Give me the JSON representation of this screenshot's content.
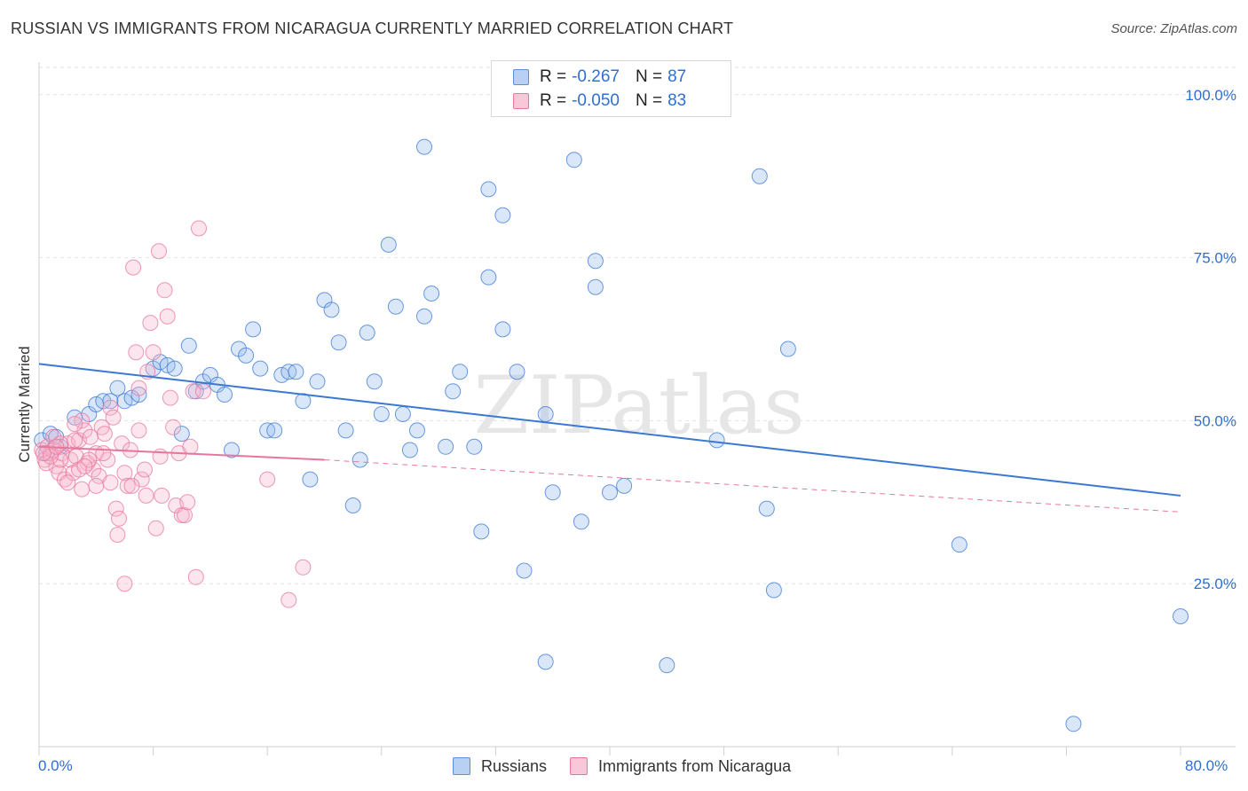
{
  "title": "RUSSIAN VS IMMIGRANTS FROM NICARAGUA CURRENTLY MARRIED CORRELATION CHART",
  "source": "Source: ZipAtlas.com",
  "watermark": "ZIPatlas",
  "legend": {
    "rows": [
      {
        "r_label": "R =",
        "r_value": "-0.267",
        "n_label": "N =",
        "n_value": "87",
        "color": "#5b8fd9",
        "fill": "#b8d0f2"
      },
      {
        "r_label": "R =",
        "r_value": "-0.050",
        "n_label": "N =",
        "n_value": "83",
        "color": "#e8769c",
        "fill": "#f8c8d8"
      }
    ]
  },
  "bottom_legend": [
    {
      "label": "Russians",
      "color": "#5b8fd9",
      "fill": "#b8d0f2"
    },
    {
      "label": "Immigrants from Nicaragua",
      "color": "#e8769c",
      "fill": "#f8c8d8"
    }
  ],
  "chart_data": {
    "type": "scatter",
    "title": "RUSSIAN VS IMMIGRANTS FROM NICARAGUA CURRENTLY MARRIED CORRELATION CHART",
    "xlabel": "",
    "ylabel": "Currently Married",
    "xlim": [
      0,
      80
    ],
    "ylim": [
      0,
      105
    ],
    "x_tick_labels": [
      "0.0%",
      "80.0%"
    ],
    "y_ticks": [
      25,
      50,
      75,
      100
    ],
    "y_tick_labels": [
      "25.0%",
      "50.0%",
      "75.0%",
      "100.0%"
    ],
    "grid": true,
    "series": [
      {
        "name": "Russians",
        "color": "#3a78d4",
        "fill": "rgba(150,186,236,0.35)",
        "trend": {
          "x": [
            0,
            80
          ],
          "y": [
            58.7,
            38.5
          ],
          "dashed_x": null
        },
        "points": [
          [
            0.2,
            47.0
          ],
          [
            0.5,
            45.0
          ],
          [
            0.8,
            48.0
          ],
          [
            1.2,
            47.5
          ],
          [
            1.5,
            46.0
          ],
          [
            2.5,
            50.5
          ],
          [
            3.5,
            51.0
          ],
          [
            4.0,
            52.5
          ],
          [
            4.5,
            53.0
          ],
          [
            5.0,
            53.0
          ],
          [
            5.5,
            55.0
          ],
          [
            6.0,
            53.0
          ],
          [
            6.5,
            53.5
          ],
          [
            7.0,
            54.0
          ],
          [
            8.0,
            58.0
          ],
          [
            8.5,
            59.0
          ],
          [
            9.0,
            58.5
          ],
          [
            9.5,
            58.0
          ],
          [
            10.0,
            48.0
          ],
          [
            10.5,
            61.5
          ],
          [
            11.0,
            54.5
          ],
          [
            11.5,
            56.0
          ],
          [
            12.0,
            57.0
          ],
          [
            12.5,
            55.5
          ],
          [
            13.0,
            54.0
          ],
          [
            13.5,
            45.5
          ],
          [
            14.0,
            61.0
          ],
          [
            14.5,
            60.0
          ],
          [
            15.0,
            64.0
          ],
          [
            15.5,
            58.0
          ],
          [
            16.0,
            48.5
          ],
          [
            16.5,
            48.5
          ],
          [
            17.0,
            57.0
          ],
          [
            17.5,
            57.5
          ],
          [
            18.0,
            57.5
          ],
          [
            18.5,
            53.0
          ],
          [
            19.0,
            41.0
          ],
          [
            19.5,
            56.0
          ],
          [
            20.0,
            68.5
          ],
          [
            20.5,
            67.0
          ],
          [
            21.0,
            62.0
          ],
          [
            21.5,
            48.5
          ],
          [
            22.0,
            37.0
          ],
          [
            22.5,
            44.0
          ],
          [
            23.0,
            63.5
          ],
          [
            23.5,
            56.0
          ],
          [
            24.0,
            51.0
          ],
          [
            24.5,
            77.0
          ],
          [
            25.0,
            67.5
          ],
          [
            25.5,
            51.0
          ],
          [
            26.0,
            45.5
          ],
          [
            26.5,
            48.5
          ],
          [
            27.0,
            66.0
          ],
          [
            27.5,
            69.5
          ],
          [
            27.0,
            92.0
          ],
          [
            28.5,
            46.0
          ],
          [
            29.0,
            54.5
          ],
          [
            29.5,
            57.5
          ],
          [
            30.5,
            46.0
          ],
          [
            31.0,
            33.0
          ],
          [
            31.5,
            72.0
          ],
          [
            31.5,
            85.5
          ],
          [
            32.5,
            64.0
          ],
          [
            33.5,
            57.5
          ],
          [
            32.5,
            81.5
          ],
          [
            34.0,
            27.0
          ],
          [
            35.5,
            13.0
          ],
          [
            35.5,
            51.0
          ],
          [
            36.0,
            39.0
          ],
          [
            37.5,
            90.0
          ],
          [
            38.0,
            34.5
          ],
          [
            39.0,
            74.5
          ],
          [
            39.0,
            70.5
          ],
          [
            40.0,
            39.0
          ],
          [
            41.0,
            40.0
          ],
          [
            44.0,
            12.5
          ],
          [
            47.5,
            47.0
          ],
          [
            50.5,
            87.5
          ],
          [
            51.0,
            36.5
          ],
          [
            51.5,
            24.0
          ],
          [
            52.5,
            61.0
          ],
          [
            64.5,
            31.0
          ],
          [
            72.5,
            3.5
          ],
          [
            80.0,
            20.0
          ]
        ]
      },
      {
        "name": "Immigrants from Nicaragua",
        "color": "#e8769c",
        "fill": "rgba(246,180,204,0.35)",
        "trend": {
          "x": [
            0,
            20
          ],
          "y": [
            46.0,
            44.0
          ],
          "dashed_to": [
            80,
            36.0
          ]
        },
        "points": [
          [
            0.2,
            45.5
          ],
          [
            0.4,
            44.0
          ],
          [
            0.6,
            46.0
          ],
          [
            0.8,
            45.0
          ],
          [
            1.0,
            47.5
          ],
          [
            1.2,
            43.0
          ],
          [
            1.4,
            42.0
          ],
          [
            1.6,
            45.0
          ],
          [
            1.8,
            41.0
          ],
          [
            2.0,
            46.5
          ],
          [
            2.2,
            44.0
          ],
          [
            2.4,
            42.0
          ],
          [
            2.6,
            44.5
          ],
          [
            2.8,
            47.0
          ],
          [
            3.0,
            50.0
          ],
          [
            3.2,
            48.5
          ],
          [
            3.4,
            43.5
          ],
          [
            3.6,
            47.5
          ],
          [
            3.8,
            42.5
          ],
          [
            4.0,
            45.0
          ],
          [
            4.2,
            41.5
          ],
          [
            4.4,
            49.0
          ],
          [
            4.6,
            48.0
          ],
          [
            4.8,
            44.0
          ],
          [
            5.0,
            52.0
          ],
          [
            5.2,
            50.5
          ],
          [
            5.4,
            36.5
          ],
          [
            5.6,
            35.0
          ],
          [
            5.8,
            46.5
          ],
          [
            6.0,
            42.0
          ],
          [
            6.2,
            40.0
          ],
          [
            6.4,
            45.5
          ],
          [
            6.6,
            73.5
          ],
          [
            6.8,
            60.5
          ],
          [
            7.0,
            55.0
          ],
          [
            7.2,
            41.0
          ],
          [
            7.4,
            42.5
          ],
          [
            7.6,
            57.5
          ],
          [
            7.8,
            65.0
          ],
          [
            8.0,
            60.5
          ],
          [
            8.2,
            33.5
          ],
          [
            8.4,
            76.0
          ],
          [
            8.6,
            38.5
          ],
          [
            8.8,
            70.0
          ],
          [
            9.0,
            66.0
          ],
          [
            9.2,
            53.5
          ],
          [
            9.4,
            49.0
          ],
          [
            9.6,
            37.0
          ],
          [
            9.8,
            45.0
          ],
          [
            10.0,
            35.5
          ],
          [
            10.2,
            35.5
          ],
          [
            10.4,
            37.5
          ],
          [
            10.6,
            46.0
          ],
          [
            10.8,
            54.5
          ],
          [
            11.0,
            26.0
          ],
          [
            11.2,
            79.5
          ],
          [
            11.5,
            54.5
          ],
          [
            1.5,
            44.0
          ],
          [
            2.0,
            40.5
          ],
          [
            2.5,
            49.5
          ],
          [
            3.0,
            39.5
          ],
          [
            4.0,
            40.0
          ],
          [
            5.5,
            32.5
          ],
          [
            6.0,
            25.0
          ],
          [
            7.0,
            48.5
          ],
          [
            7.5,
            38.5
          ],
          [
            8.5,
            44.5
          ],
          [
            16.0,
            41.0
          ],
          [
            17.5,
            22.5
          ],
          [
            18.5,
            27.5
          ],
          [
            0.5,
            43.5
          ],
          [
            1.0,
            45.5
          ],
          [
            1.5,
            46.5
          ],
          [
            2.5,
            47.0
          ],
          [
            3.5,
            44.0
          ],
          [
            4.5,
            45.0
          ],
          [
            5.0,
            40.5
          ],
          [
            6.5,
            40.0
          ],
          [
            0.8,
            44.5
          ],
          [
            1.2,
            46.0
          ],
          [
            2.8,
            42.5
          ],
          [
            3.2,
            43.0
          ],
          [
            0.3,
            45.0
          ]
        ]
      }
    ]
  }
}
